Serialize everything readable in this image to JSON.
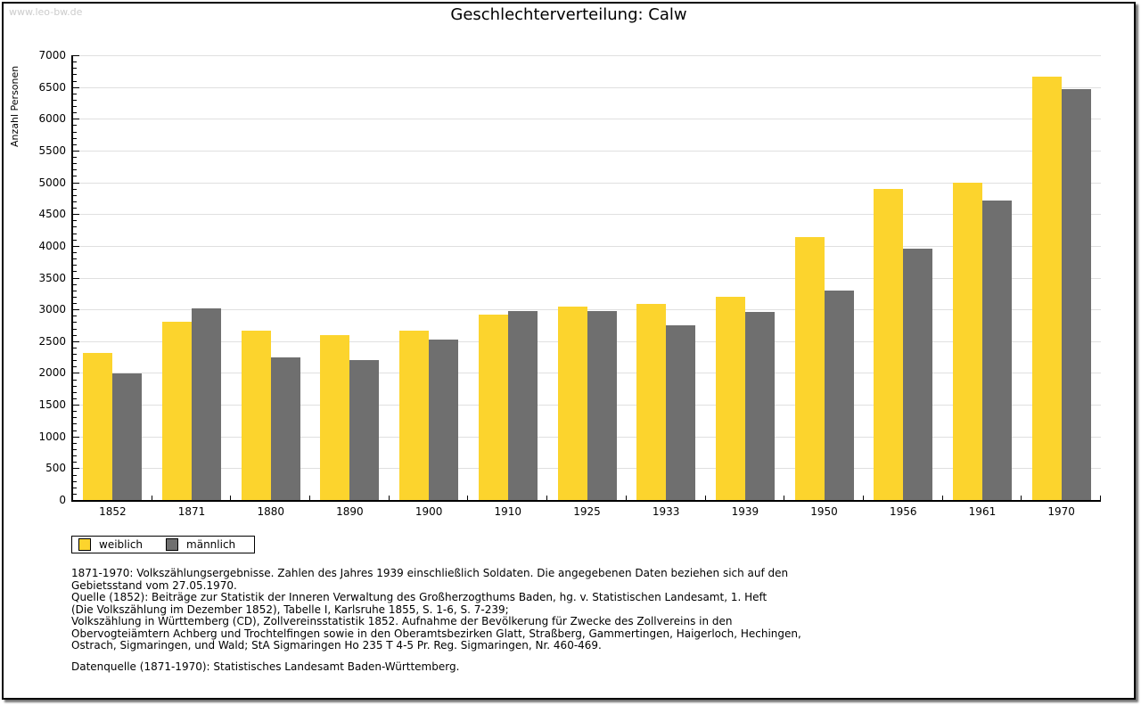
{
  "page": {
    "watermark": "www.leo-bw.de",
    "title": "Geschlechterverteilung: Calw"
  },
  "chart_data": {
    "type": "bar",
    "title": "Geschlechterverteilung: Calw",
    "xlabel": "",
    "ylabel": "Anzahl Personen",
    "ylim": [
      0,
      7000
    ],
    "ytick_step": 500,
    "yminor_step": 100,
    "grid": true,
    "legend_position": "bottom-left",
    "categories": [
      "1852",
      "1871",
      "1880",
      "1890",
      "1900",
      "1910",
      "1925",
      "1933",
      "1939",
      "1950",
      "1956",
      "1961",
      "1970"
    ],
    "series": [
      {
        "name": "weiblich",
        "color": "#fcd42d",
        "values": [
          2320,
          2800,
          2660,
          2590,
          2670,
          2920,
          3040,
          3080,
          3200,
          4140,
          4900,
          4990,
          6660
        ]
      },
      {
        "name": "männlich",
        "color": "#6f6f6f",
        "values": [
          1990,
          3020,
          2250,
          2200,
          2520,
          2970,
          2970,
          2750,
          2960,
          3290,
          3950,
          4720,
          6470
        ]
      }
    ]
  },
  "footnotes": {
    "lines": [
      "1871-1970: Volkszählungsergebnisse. Zahlen des Jahres 1939 einschließlich Soldaten. Die angegebenen Daten beziehen sich auf den",
      "Gebietsstand vom 27.05.1970.",
      "Quelle (1852): Beiträge zur Statistik der Inneren Verwaltung des Großherzogthums Baden, hg. v. Statistischen Landesamt, 1. Heft",
      "(Die Volkszählung im Dezember 1852), Tabelle I, Karlsruhe 1855, S. 1-6, S. 7-239;",
      "Volkszählung in Württemberg (CD), Zollvereinsstatistik 1852. Aufnahme der Bevölkerung für Zwecke des Zollvereins in den",
      "Obervogteiämtern Achberg und Trochtelfingen sowie in den Oberamtsbezirken Glatt, Straßberg, Gammertingen, Haigerloch, Hechingen,",
      "Ostrach, Sigmaringen, und Wald; StA Sigmaringen Ho 235 T 4-5 Pr. Reg. Sigmaringen, Nr. 460-469."
    ],
    "datasource": "Datenquelle (1871-1970): Statistisches Landesamt Baden-Württemberg."
  },
  "colors": {
    "female_bar": "#fcd42d",
    "male_bar": "#6f6f6f",
    "gridline": "#e0e0e0",
    "axis": "#000000",
    "watermark": "#cccccc"
  }
}
